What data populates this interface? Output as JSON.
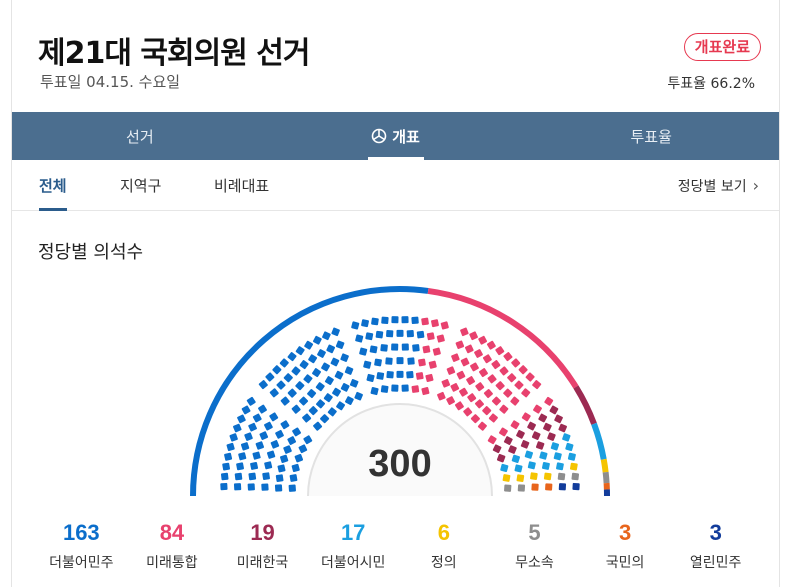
{
  "header": {
    "title": "제21대 국회의원 선거",
    "date": "투표일 04.15. 수요일",
    "status": "개표완료",
    "turnout_label": "투표율",
    "turnout_value": "66.2%"
  },
  "nav": {
    "tabs": [
      {
        "label": "선거",
        "active": false
      },
      {
        "label": "개표",
        "active": true
      },
      {
        "label": "투표율",
        "active": false
      }
    ]
  },
  "subtabs": {
    "items": [
      {
        "label": "전체",
        "active": true
      },
      {
        "label": "지역구",
        "active": false
      },
      {
        "label": "비례대표",
        "active": false
      }
    ],
    "party_view": "정당별 보기"
  },
  "section_title": "정당별 의석수",
  "chart_data": {
    "type": "hemicycle",
    "total_label": "300",
    "parties": [
      {
        "name": "더불어민주",
        "seats": 163,
        "color": "#0b6ecb"
      },
      {
        "name": "미래통합",
        "seats": 84,
        "color": "#e8416e"
      },
      {
        "name": "미래한국",
        "seats": 19,
        "color": "#9c2a52"
      },
      {
        "name": "더불어시민",
        "seats": 17,
        "color": "#1b9fe0"
      },
      {
        "name": "정의",
        "seats": 6,
        "color": "#f5c400"
      },
      {
        "name": "무소속",
        "seats": 5,
        "color": "#8e8e8e"
      },
      {
        "name": "국민의",
        "seats": 3,
        "color": "#e8651c"
      },
      {
        "name": "열린민주",
        "seats": 3,
        "color": "#123c9b"
      }
    ]
  }
}
